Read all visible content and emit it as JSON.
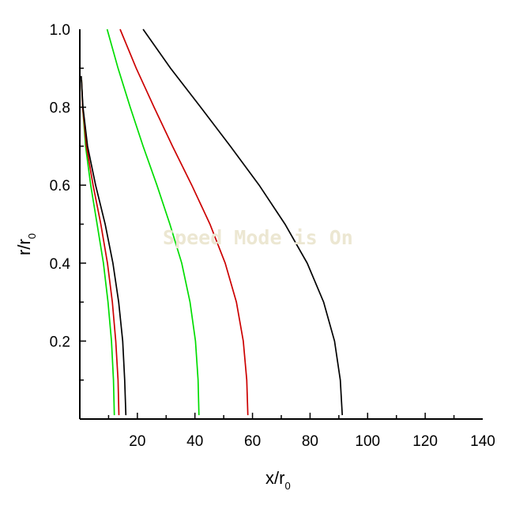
{
  "chart_data": {
    "type": "line",
    "xlabel": {
      "main": "x/r",
      "sub": "0"
    },
    "ylabel": {
      "main": "r/r",
      "sub": "0"
    },
    "xlim": [
      0,
      140
    ],
    "ylim": [
      0,
      1.0
    ],
    "x_ticks": [
      20,
      40,
      60,
      80,
      100,
      120,
      140
    ],
    "y_ticks": [
      0.2,
      0.4,
      0.6,
      0.8,
      1.0
    ],
    "x_tick_labels": [
      "20",
      "40",
      "60",
      "80",
      "100",
      "120",
      "140"
    ],
    "y_tick_labels": [
      "0.2",
      "0.4",
      "0.6",
      "0.8",
      "1.0"
    ],
    "grid": false,
    "watermark": "Speed Mode is On",
    "series": [
      {
        "color": "#00dd00",
        "points": [
          [
            0.6,
            0.87
          ],
          [
            1.0,
            0.8
          ],
          [
            2.0,
            0.7
          ],
          [
            3.8,
            0.6
          ],
          [
            6.0,
            0.5
          ],
          [
            8.2,
            0.4
          ],
          [
            9.8,
            0.3
          ],
          [
            11.0,
            0.2
          ],
          [
            11.7,
            0.1
          ],
          [
            12.0,
            0.01
          ]
        ]
      },
      {
        "color": "#cc0000",
        "points": [
          [
            0.6,
            0.87
          ],
          [
            1.0,
            0.8
          ],
          [
            2.3,
            0.7
          ],
          [
            4.6,
            0.6
          ],
          [
            7.3,
            0.5
          ],
          [
            9.6,
            0.4
          ],
          [
            11.3,
            0.3
          ],
          [
            12.5,
            0.2
          ],
          [
            13.3,
            0.1
          ],
          [
            13.6,
            0.01
          ]
        ]
      },
      {
        "color": "#000000",
        "points": [
          [
            0.5,
            0.88
          ],
          [
            1.1,
            0.8
          ],
          [
            2.7,
            0.7
          ],
          [
            5.5,
            0.6
          ],
          [
            8.8,
            0.5
          ],
          [
            11.5,
            0.4
          ],
          [
            13.5,
            0.3
          ],
          [
            14.9,
            0.2
          ],
          [
            15.6,
            0.1
          ],
          [
            16.0,
            0.01
          ]
        ]
      },
      {
        "color": "#00dd00",
        "points": [
          [
            9.5,
            1.0
          ],
          [
            13.3,
            0.9
          ],
          [
            17.5,
            0.8
          ],
          [
            22.0,
            0.7
          ],
          [
            26.8,
            0.6
          ],
          [
            31.3,
            0.5
          ],
          [
            35.4,
            0.4
          ],
          [
            38.3,
            0.3
          ],
          [
            40.2,
            0.2
          ],
          [
            41.1,
            0.1
          ],
          [
            41.4,
            0.01
          ]
        ]
      },
      {
        "color": "#cc0000",
        "points": [
          [
            14.0,
            1.0
          ],
          [
            19.6,
            0.9
          ],
          [
            25.8,
            0.8
          ],
          [
            32.2,
            0.7
          ],
          [
            38.9,
            0.6
          ],
          [
            45.2,
            0.5
          ],
          [
            50.5,
            0.4
          ],
          [
            54.4,
            0.3
          ],
          [
            56.8,
            0.2
          ],
          [
            58.0,
            0.1
          ],
          [
            58.4,
            0.01
          ]
        ]
      },
      {
        "color": "#000000",
        "points": [
          [
            22.0,
            1.0
          ],
          [
            31.5,
            0.9
          ],
          [
            42.0,
            0.8
          ],
          [
            52.3,
            0.7
          ],
          [
            62.3,
            0.6
          ],
          [
            71.3,
            0.5
          ],
          [
            79.0,
            0.4
          ],
          [
            84.7,
            0.3
          ],
          [
            88.5,
            0.2
          ],
          [
            90.5,
            0.1
          ],
          [
            91.2,
            0.01
          ]
        ]
      }
    ]
  }
}
